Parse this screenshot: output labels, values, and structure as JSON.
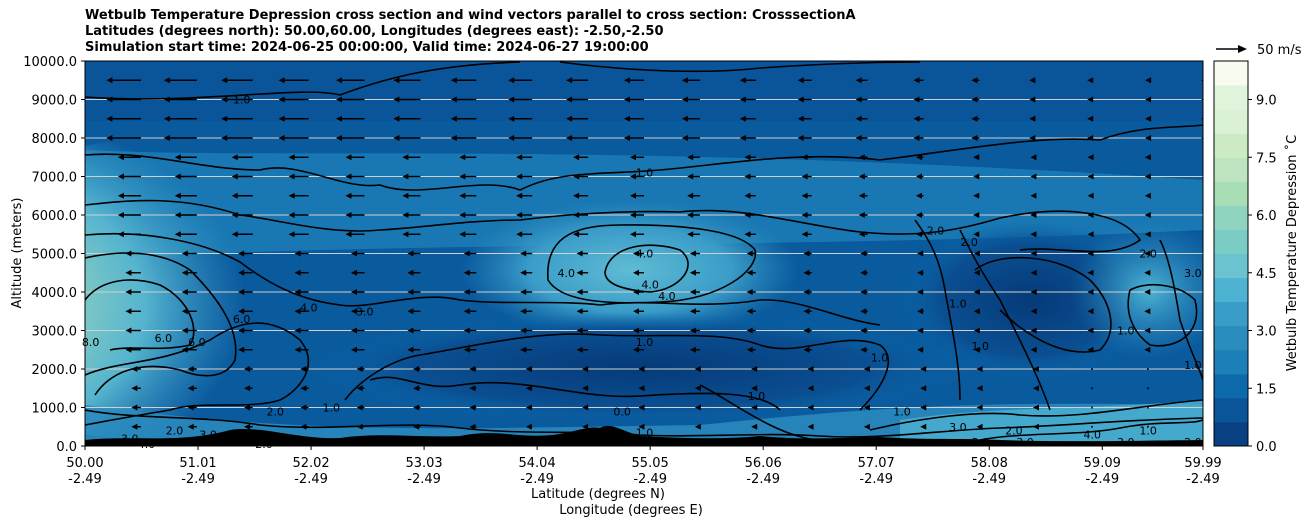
{
  "chart_data": {
    "type": "heatmap",
    "title_lines": [
      "Wetbulb Temperature Depression cross section and wind vectors parallel to cross section: CrosssectionA",
      "Latitudes (degrees north): 50.00,60.00, Longitudes (degrees east): -2.50,-2.50",
      "Simulation start time: 2024-06-25 00:00:00, Valid time: 2024-06-27 19:00:00"
    ],
    "ylabel": "Altitude (meters)",
    "xlabel": "Latitude (degrees N)",
    "xlabel2": "Longitude (degrees E)",
    "ylim": [
      0,
      10000
    ],
    "y_ticks": [
      "0.0",
      "1000.0",
      "2000.0",
      "3000.0",
      "4000.0",
      "5000.0",
      "6000.0",
      "7000.0",
      "8000.0",
      "9000.0",
      "10000.0"
    ],
    "x_ticks": [
      {
        "lat": "50.00",
        "lon": "-2.49"
      },
      {
        "lat": "51.01",
        "lon": "-2.49"
      },
      {
        "lat": "52.02",
        "lon": "-2.49"
      },
      {
        "lat": "53.03",
        "lon": "-2.49"
      },
      {
        "lat": "54.04",
        "lon": "-2.49"
      },
      {
        "lat": "55.05",
        "lon": "-2.49"
      },
      {
        "lat": "56.06",
        "lon": "-2.49"
      },
      {
        "lat": "57.07",
        "lon": "-2.49"
      },
      {
        "lat": "58.08",
        "lon": "-2.49"
      },
      {
        "lat": "59.09",
        "lon": "-2.49"
      },
      {
        "lat": "59.99",
        "lon": "-2.49"
      }
    ],
    "grid": "horizontal",
    "colorbar": {
      "label": "Wetbulb Temperature Depression ˚C",
      "ticks": [
        "0.0",
        "1.5",
        "3.0",
        "4.5",
        "6.0",
        "7.5",
        "9.0"
      ],
      "range": [
        0,
        10
      ],
      "colors": [
        "#084081",
        "#0a559a",
        "#0c6aab",
        "#1d7fb8",
        "#2b8cbe",
        "#3a9cc8",
        "#4eb3d3",
        "#6bc3cf",
        "#7bccc4",
        "#8fd3c1",
        "#a8ddb5",
        "#bde5bf",
        "#ccebc5",
        "#dbf1d6",
        "#e0f3db",
        "#f7fcf0"
      ]
    },
    "wind_key": {
      "label": "50 m/s"
    },
    "contour_labels": [
      {
        "text": "1.0",
        "lat": 51.4,
        "alt": 9000
      },
      {
        "text": "1.0",
        "lat": 55.0,
        "alt": 7100
      },
      {
        "text": "4.0",
        "lat": 55.0,
        "alt": 5000
      },
      {
        "text": "4.0",
        "lat": 54.3,
        "alt": 4500
      },
      {
        "text": "4.0",
        "lat": 55.05,
        "alt": 4200
      },
      {
        "text": "4.0",
        "lat": 55.2,
        "alt": 3900
      },
      {
        "text": "6.0",
        "lat": 50.7,
        "alt": 2800
      },
      {
        "text": "6.0",
        "lat": 51.0,
        "alt": 2700
      },
      {
        "text": "6.0",
        "lat": 51.4,
        "alt": 3300
      },
      {
        "text": "4.0",
        "lat": 52.0,
        "alt": 3600
      },
      {
        "text": "3.0",
        "lat": 52.5,
        "alt": 3500
      },
      {
        "text": "1.0",
        "lat": 55.0,
        "alt": 2700
      },
      {
        "text": "2.0",
        "lat": 57.6,
        "alt": 5600
      },
      {
        "text": "2.0",
        "lat": 57.9,
        "alt": 5300
      },
      {
        "text": "1.0",
        "lat": 57.8,
        "alt": 3700
      },
      {
        "text": "1.0",
        "lat": 57.1,
        "alt": 2300
      },
      {
        "text": "1.0",
        "lat": 58.0,
        "alt": 2600
      },
      {
        "text": "2.0",
        "lat": 59.5,
        "alt": 5000
      },
      {
        "text": "3.0",
        "lat": 59.9,
        "alt": 4500
      },
      {
        "text": "1.0",
        "lat": 59.3,
        "alt": 3000
      },
      {
        "text": "1.0",
        "lat": 59.9,
        "alt": 2100
      },
      {
        "text": "1.0",
        "lat": 52.2,
        "alt": 1000
      },
      {
        "text": "1.0",
        "lat": 56.0,
        "alt": 1300
      },
      {
        "text": "1.0",
        "lat": 57.3,
        "alt": 900
      },
      {
        "text": "0.0",
        "lat": 54.8,
        "alt": 900
      },
      {
        "text": "1.0",
        "lat": 55.0,
        "alt": 350
      },
      {
        "text": "3.0",
        "lat": 57.8,
        "alt": 500
      },
      {
        "text": "3.0",
        "lat": 58.0,
        "alt": 100
      },
      {
        "text": "2.0",
        "lat": 58.3,
        "alt": 400
      },
      {
        "text": "3.0",
        "lat": 58.4,
        "alt": 100
      },
      {
        "text": "4.0",
        "lat": 59.0,
        "alt": 300
      },
      {
        "text": "3.0",
        "lat": 59.3,
        "alt": 100
      },
      {
        "text": "1.0",
        "lat": 59.5,
        "alt": 400
      },
      {
        "text": "2.0",
        "lat": 59.9,
        "alt": 100
      },
      {
        "text": "8.0",
        "lat": 50.05,
        "alt": 2700
      },
      {
        "text": "3.0",
        "lat": 50.4,
        "alt": 200
      },
      {
        "text": "4.0",
        "lat": 50.55,
        "alt": 50
      },
      {
        "text": "2.0",
        "lat": 50.8,
        "alt": 400
      },
      {
        "text": "3.0",
        "lat": 51.1,
        "alt": 300
      },
      {
        "text": "2.0",
        "lat": 51.6,
        "alt": 50
      },
      {
        "text": "2.0",
        "lat": 51.7,
        "alt": 900
      }
    ]
  }
}
